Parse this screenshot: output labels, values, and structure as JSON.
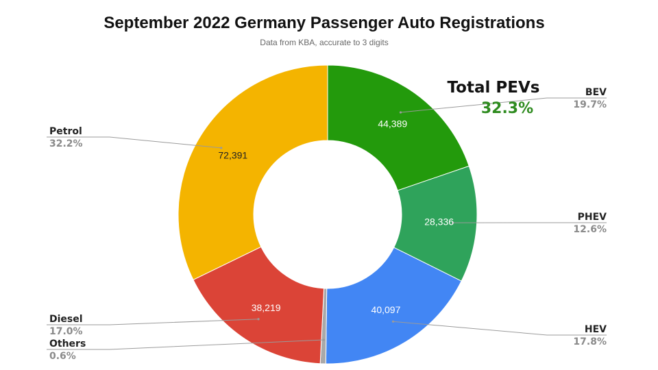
{
  "chart_data": {
    "type": "pie",
    "donut": true,
    "title": "September 2022 Germany Passenger Auto Registrations",
    "subtitle": "Data from KBA, accurate to 3 digits",
    "annotation": {
      "title": "Total PEVs",
      "value": "32.3%"
    },
    "slices": [
      {
        "name": "BEV",
        "value": 44389,
        "value_label": "44,389",
        "percent": "19.7%",
        "color": "#239a0c"
      },
      {
        "name": "PHEV",
        "value": 28336,
        "value_label": "28,336",
        "percent": "12.6%",
        "color": "#2fa35b"
      },
      {
        "name": "HEV",
        "value": 40097,
        "value_label": "40,097",
        "percent": "17.8%",
        "color": "#4286f4"
      },
      {
        "name": "Others",
        "value": 1352,
        "value_label": "",
        "percent": "0.6%",
        "color": "#a9a9a9"
      },
      {
        "name": "Diesel",
        "value": 38219,
        "value_label": "38,219",
        "percent": "17.0%",
        "color": "#db4437"
      },
      {
        "name": "Petrol",
        "value": 72391,
        "value_label": "72,391",
        "percent": "32.2%",
        "color": "#f4b400"
      }
    ]
  }
}
